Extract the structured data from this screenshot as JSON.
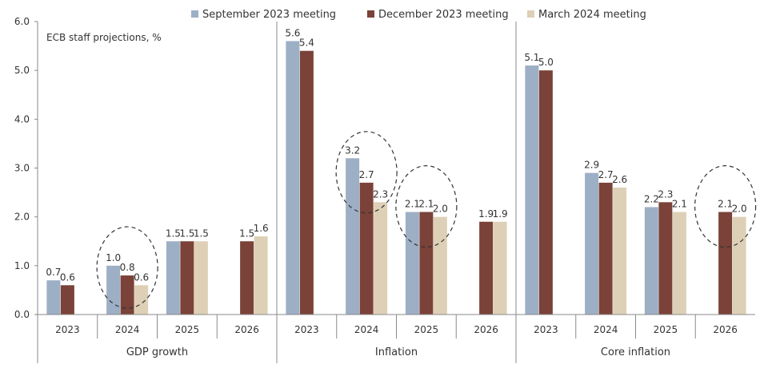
{
  "chart_data": {
    "type": "bar",
    "annotation": "ECB staff projections, %",
    "ylim": [
      0,
      6
    ],
    "yticks": [
      "0.0",
      "1.0",
      "2.0",
      "3.0",
      "4.0",
      "5.0",
      "6.0"
    ],
    "legend_position": "top",
    "colors": [
      "#9dafc5",
      "#7a4238",
      "#ddd0b6"
    ],
    "series": [
      {
        "name": "September 2023 meeting"
      },
      {
        "name": "December 2023 meeting"
      },
      {
        "name": "March 2024 meeting"
      }
    ],
    "groups": [
      {
        "label": "GDP growth",
        "categories": [
          {
            "label": "2023",
            "values": [
              0.7,
              0.6,
              null
            ],
            "labels": [
              "0.7",
              "0.6",
              ""
            ]
          },
          {
            "label": "2024",
            "values": [
              1.0,
              0.8,
              0.6
            ],
            "labels": [
              "1.0",
              "0.8",
              "0.6"
            ],
            "circled": true
          },
          {
            "label": "2025",
            "values": [
              1.5,
              1.5,
              1.5
            ],
            "labels": [
              "1.5",
              "1.5",
              "1.5"
            ]
          },
          {
            "label": "2026",
            "values": [
              null,
              1.5,
              1.6
            ],
            "labels": [
              "",
              "1.5",
              "1.6"
            ]
          }
        ]
      },
      {
        "label": "Inflation",
        "categories": [
          {
            "label": "2023",
            "values": [
              5.6,
              5.4,
              null
            ],
            "labels": [
              "5.6",
              "5.4",
              ""
            ]
          },
          {
            "label": "2024",
            "values": [
              3.2,
              2.7,
              2.3
            ],
            "labels": [
              "3.2",
              "2.7",
              "2.3"
            ],
            "circled": true
          },
          {
            "label": "2025",
            "values": [
              2.1,
              2.1,
              2.0
            ],
            "labels": [
              "2.1",
              "2.1",
              "2.0"
            ],
            "circled": true
          },
          {
            "label": "2026",
            "values": [
              null,
              1.9,
              1.9
            ],
            "labels": [
              "",
              "1.9",
              "1.9"
            ]
          }
        ]
      },
      {
        "label": "Core inflation",
        "categories": [
          {
            "label": "2023",
            "values": [
              5.1,
              5.0,
              null
            ],
            "labels": [
              "5.1",
              "5.0",
              ""
            ]
          },
          {
            "label": "2024",
            "values": [
              2.9,
              2.7,
              2.6
            ],
            "labels": [
              "2.9",
              "2.7",
              "2.6"
            ]
          },
          {
            "label": "2025",
            "values": [
              2.2,
              2.3,
              2.1
            ],
            "labels": [
              "2.2",
              "2.3",
              "2.1"
            ]
          },
          {
            "label": "2026",
            "values": [
              null,
              2.1,
              2.0
            ],
            "labels": [
              "",
              "2.1",
              "2.0"
            ],
            "circled": true
          }
        ]
      }
    ]
  }
}
